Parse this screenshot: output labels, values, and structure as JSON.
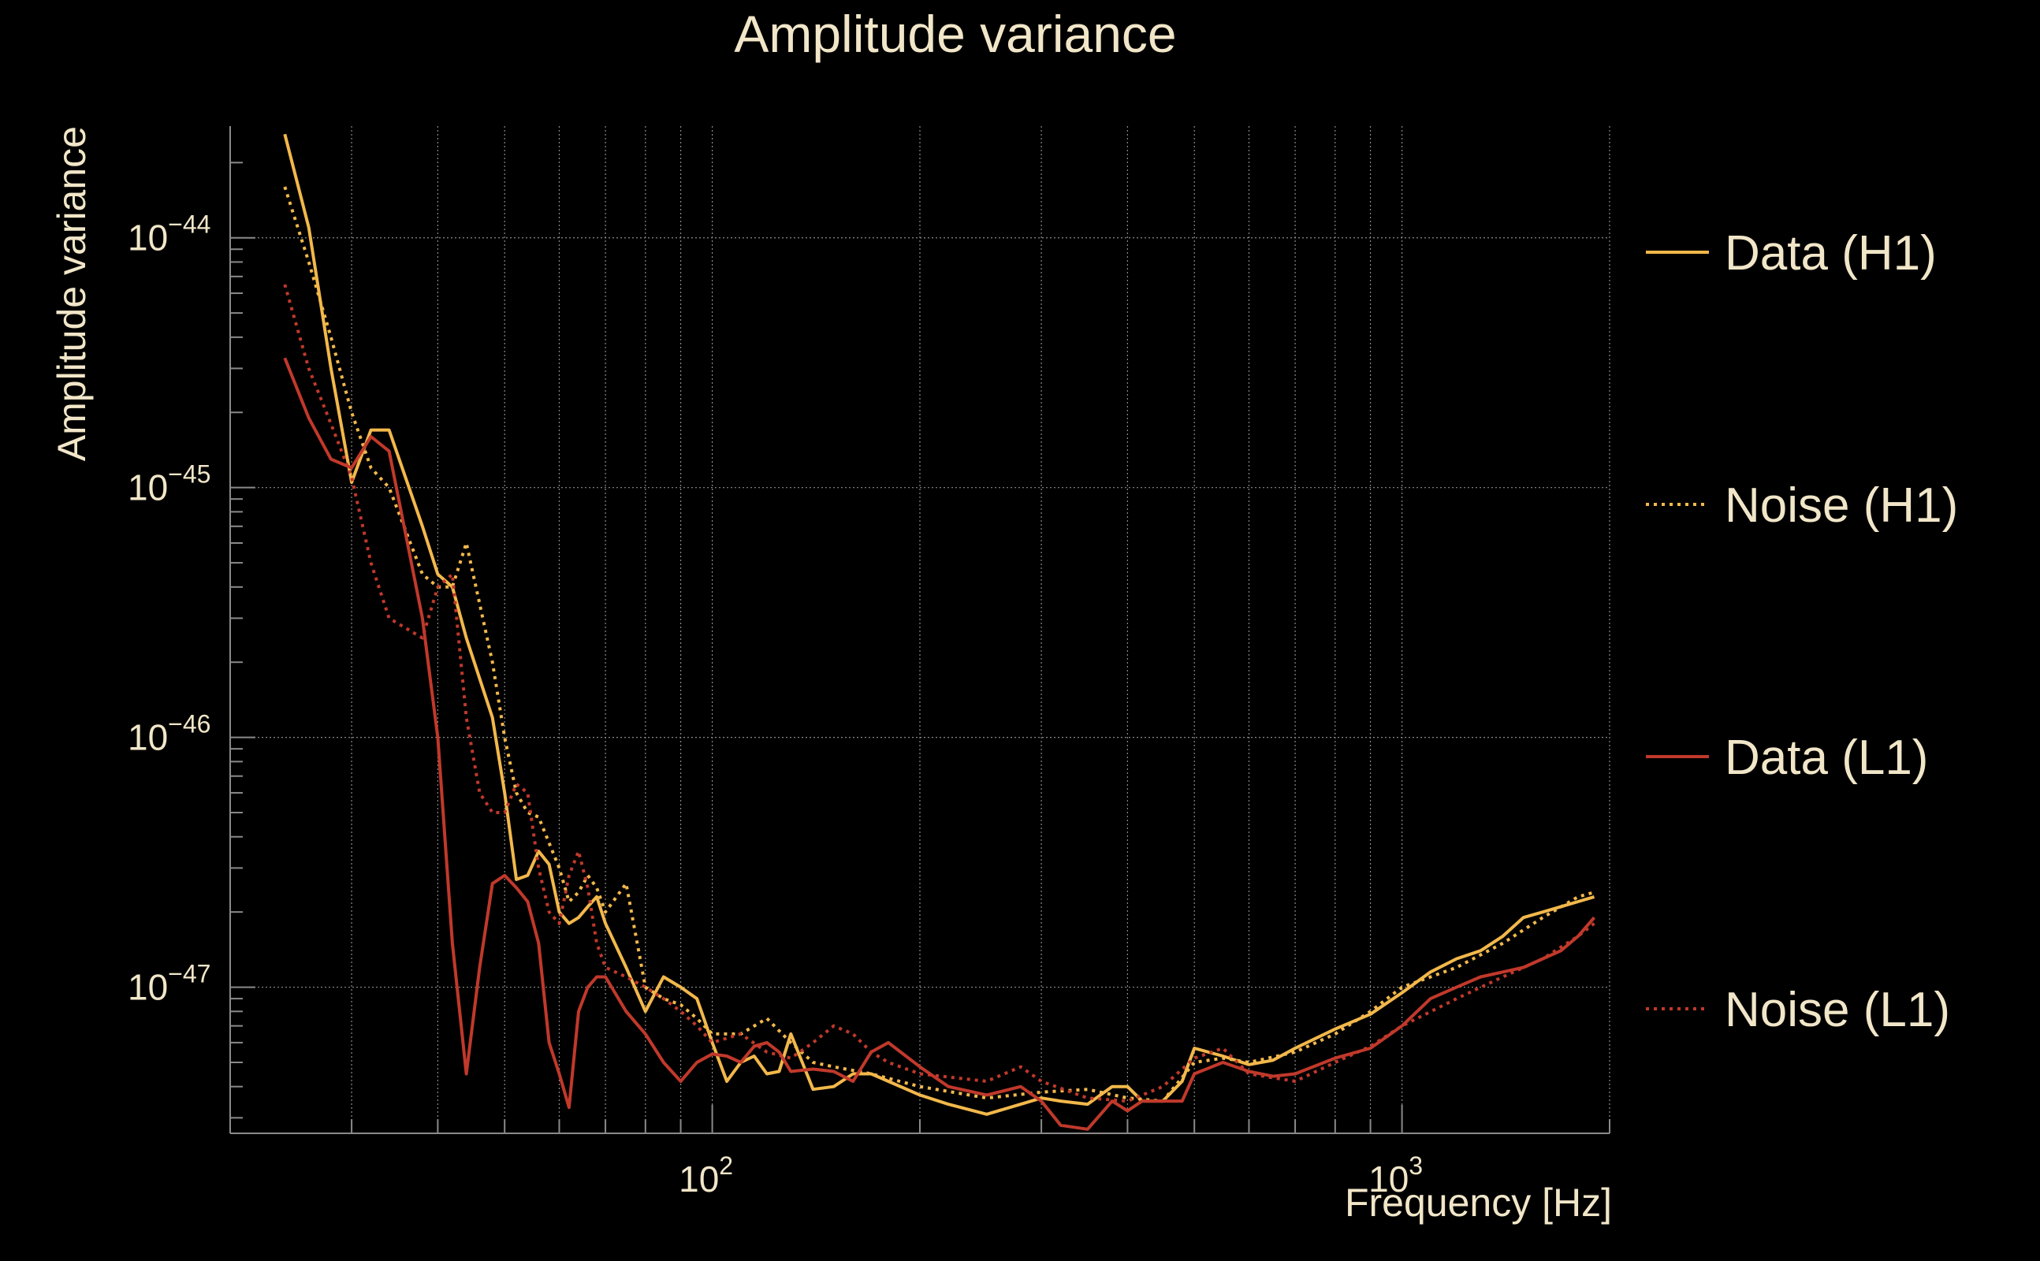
{
  "chart_data": {
    "type": "line",
    "title": "Amplitude variance",
    "xlabel": "Frequency [Hz]",
    "ylabel": "Amplitude variance",
    "x_scale": "log",
    "y_scale": "log",
    "xlim": [
      20,
      2000
    ],
    "ylim": [
      2.6e-48,
      2.8e-44
    ],
    "x_tick_labels": [
      {
        "value": 100,
        "base": "10",
        "exp": "2"
      },
      {
        "value": 1000,
        "base": "10",
        "exp": "3"
      }
    ],
    "y_tick_labels": [
      {
        "value": 1e-44,
        "base": "10",
        "exp": "−44"
      },
      {
        "value": 1e-45,
        "base": "10",
        "exp": "−45"
      },
      {
        "value": 1e-46,
        "base": "10",
        "exp": "−46"
      },
      {
        "value": 1e-47,
        "base": "10",
        "exp": "−47"
      }
    ],
    "grid": true,
    "legend_position": "right",
    "colors": {
      "background": "#000000",
      "text": "#f1e6c8",
      "grid": "#8a8a8a",
      "h1": "#f2b84b",
      "l1": "#c0392b"
    },
    "series": [
      {
        "name": "Data (H1)",
        "color": "#f2b84b",
        "dash": "solid",
        "x": [
          24,
          26,
          28,
          30,
          32,
          34,
          38,
          40,
          42,
          44,
          48,
          50,
          52,
          54,
          56,
          58,
          60,
          62,
          64,
          66,
          68,
          70,
          75,
          80,
          85,
          90,
          95,
          100,
          105,
          110,
          115,
          120,
          125,
          130,
          140,
          150,
          160,
          170,
          180,
          200,
          220,
          250,
          280,
          300,
          320,
          350,
          380,
          400,
          420,
          450,
          480,
          500,
          550,
          600,
          650,
          700,
          800,
          900,
          1000,
          1100,
          1200,
          1300,
          1400,
          1500,
          1600,
          1700,
          1800,
          1900
        ],
        "y": [
          2.6e-44,
          1.1e-44,
          3e-45,
          1.05e-45,
          1.7e-45,
          1.7e-45,
          7e-46,
          4.5e-46,
          4e-46,
          2.5e-46,
          1.2e-46,
          6e-47,
          2.7e-47,
          2.8e-47,
          3.5e-47,
          3.1e-47,
          2e-47,
          1.8e-47,
          1.9e-47,
          2.1e-47,
          2.3e-47,
          1.8e-47,
          1.2e-47,
          8e-48,
          1.1e-47,
          1e-47,
          9e-48,
          6e-48,
          4.2e-48,
          5e-48,
          5.3e-48,
          4.5e-48,
          4.6e-48,
          6.5e-48,
          3.9e-48,
          4e-48,
          4.5e-48,
          4.5e-48,
          4.2e-48,
          3.7e-48,
          3.4e-48,
          3.1e-48,
          3.4e-48,
          3.6e-48,
          3.5e-48,
          3.4e-48,
          4e-48,
          4e-48,
          3.5e-48,
          3.5e-48,
          4.2e-48,
          5.7e-48,
          5.3e-48,
          4.9e-48,
          5.1e-48,
          5.7e-48,
          6.8e-48,
          7.8e-48,
          9.5e-48,
          1.15e-47,
          1.3e-47,
          1.4e-47,
          1.6e-47,
          1.9e-47,
          2e-47,
          2.1e-47,
          2.2e-47,
          2.3e-47
        ]
      },
      {
        "name": "Noise (H1)",
        "color": "#f2b84b",
        "dash": "dotted",
        "x": [
          24,
          26,
          28,
          30,
          32,
          34,
          38,
          40,
          42,
          44,
          48,
          50,
          52,
          54,
          56,
          60,
          62,
          64,
          66,
          68,
          70,
          75,
          80,
          85,
          90,
          95,
          100,
          110,
          120,
          130,
          140,
          150,
          170,
          200,
          250,
          300,
          350,
          400,
          450,
          500,
          550,
          600,
          700,
          800,
          900,
          1000,
          1200,
          1400,
          1600,
          1800,
          1900
        ],
        "y": [
          1.6e-44,
          8e-45,
          4e-45,
          2e-45,
          1.2e-45,
          1e-45,
          4.5e-46,
          4e-46,
          4e-46,
          6e-46,
          2e-46,
          1e-46,
          6e-47,
          5e-47,
          4.8e-47,
          3e-47,
          2.2e-47,
          2.4e-47,
          2.8e-47,
          2.5e-47,
          2e-47,
          2.6e-47,
          1e-47,
          9e-48,
          8.5e-48,
          7.5e-48,
          6.5e-48,
          6.5e-48,
          7.5e-48,
          6e-48,
          5e-48,
          4.8e-48,
          4.5e-48,
          4e-48,
          3.6e-48,
          3.8e-48,
          3.9e-48,
          3.6e-48,
          3.5e-48,
          5e-48,
          5.2e-48,
          5e-48,
          5.5e-48,
          6.5e-48,
          8e-48,
          1e-47,
          1.2e-47,
          1.5e-47,
          1.9e-47,
          2.3e-47,
          2.4e-47
        ]
      },
      {
        "name": "Data (L1)",
        "color": "#c0392b",
        "dash": "solid",
        "x": [
          24,
          26,
          28,
          30,
          32,
          34,
          38,
          40,
          42,
          44,
          46,
          48,
          50,
          52,
          54,
          56,
          58,
          60,
          62,
          64,
          66,
          68,
          70,
          75,
          80,
          85,
          90,
          95,
          100,
          105,
          110,
          115,
          120,
          125,
          130,
          140,
          150,
          160,
          170,
          180,
          200,
          220,
          250,
          280,
          300,
          320,
          350,
          380,
          400,
          420,
          450,
          480,
          500,
          550,
          600,
          650,
          700,
          800,
          900,
          1000,
          1100,
          1200,
          1300,
          1400,
          1500,
          1600,
          1700,
          1800,
          1900
        ],
        "y": [
          3.3e-45,
          1.9e-45,
          1.3e-45,
          1.2e-45,
          1.6e-45,
          1.4e-45,
          3e-46,
          1e-46,
          1.5e-47,
          4.5e-48,
          1.2e-47,
          2.6e-47,
          2.8e-47,
          2.5e-47,
          2.2e-47,
          1.5e-47,
          6e-48,
          4.5e-48,
          3.3e-48,
          8e-48,
          1e-47,
          1.1e-47,
          1.1e-47,
          8e-48,
          6.5e-48,
          5e-48,
          4.2e-48,
          5e-48,
          5.4e-48,
          5.3e-48,
          5e-48,
          5.8e-48,
          6e-48,
          5.5e-48,
          4.6e-48,
          4.7e-48,
          4.6e-48,
          4.2e-48,
          5.5e-48,
          6e-48,
          4.8e-48,
          4e-48,
          3.7e-48,
          4e-48,
          3.5e-48,
          2.8e-48,
          2.7e-48,
          3.5e-48,
          3.2e-48,
          3.5e-48,
          3.5e-48,
          3.5e-48,
          4.5e-48,
          5e-48,
          4.6e-48,
          4.4e-48,
          4.5e-48,
          5.2e-48,
          5.7e-48,
          7e-48,
          9e-48,
          1e-47,
          1.1e-47,
          1.15e-47,
          1.2e-47,
          1.3e-47,
          1.4e-47,
          1.6e-47,
          1.9e-47
        ]
      },
      {
        "name": "Noise (L1)",
        "color": "#c0392b",
        "dash": "dotted",
        "x": [
          24,
          26,
          28,
          30,
          32,
          34,
          38,
          40,
          42,
          44,
          46,
          48,
          50,
          52,
          54,
          56,
          58,
          60,
          62,
          64,
          66,
          68,
          70,
          75,
          80,
          85,
          90,
          95,
          100,
          110,
          120,
          130,
          140,
          150,
          160,
          170,
          180,
          200,
          250,
          280,
          300,
          350,
          400,
          450,
          500,
          550,
          600,
          700,
          800,
          900,
          1000,
          1200,
          1400,
          1600,
          1800,
          1900
        ],
        "y": [
          6.5e-45,
          3e-45,
          1.8e-45,
          1.1e-45,
          5e-46,
          3e-46,
          2.5e-46,
          4e-46,
          4.5e-46,
          1.2e-46,
          6e-47,
          5e-47,
          5e-47,
          6.5e-47,
          6e-47,
          3e-47,
          2e-47,
          1.8e-47,
          2.8e-47,
          3.5e-47,
          2.5e-47,
          1.5e-47,
          1.2e-47,
          1.1e-47,
          1e-47,
          9e-48,
          8e-48,
          7e-48,
          6e-48,
          6.5e-48,
          5.5e-48,
          5.2e-48,
          6e-48,
          7e-48,
          6.5e-48,
          5.5e-48,
          5e-48,
          4.5e-48,
          4.2e-48,
          4.8e-48,
          4.2e-48,
          3.6e-48,
          3.5e-48,
          4e-48,
          5.2e-48,
          5.7e-48,
          4.5e-48,
          4.2e-48,
          5e-48,
          5.8e-48,
          7e-48,
          9e-48,
          1.1e-47,
          1.3e-47,
          1.6e-47,
          1.8e-47
        ]
      }
    ]
  }
}
